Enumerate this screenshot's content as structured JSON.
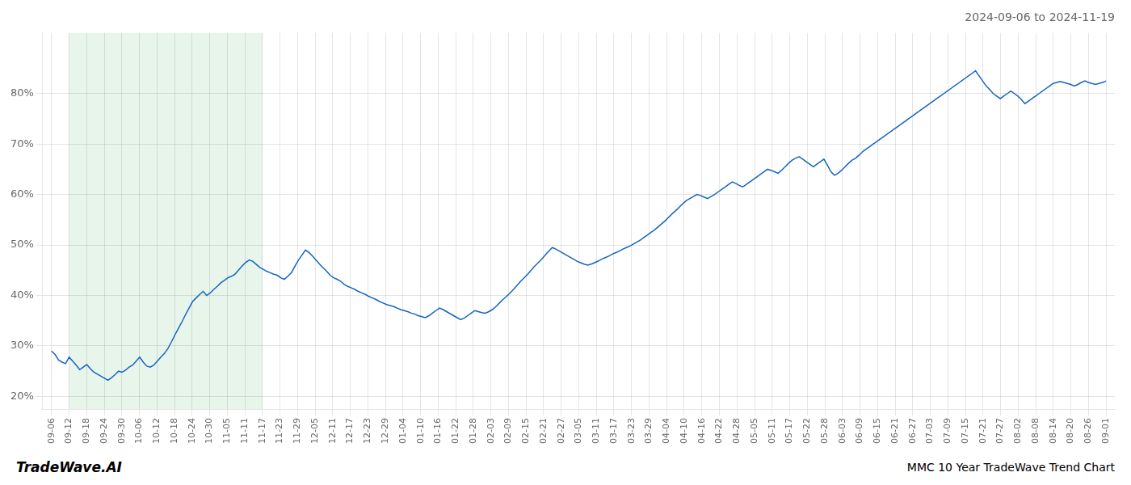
{
  "chart_data": {
    "type": "line",
    "title": "2024-09-06 to 2024-11-19",
    "annotations": [
      "TradeWave.AI",
      "MMC 10 Year TradeWave Trend Chart"
    ],
    "color": "#1565c0",
    "grid": true,
    "xlim": [
      -0.5,
      60.5
    ],
    "ylim": [
      0.175,
      0.92
    ],
    "yticks": [
      {
        "value": 0.2,
        "label": "20%"
      },
      {
        "value": 0.3,
        "label": "30%"
      },
      {
        "value": 0.4,
        "label": "40%"
      },
      {
        "value": 0.5,
        "label": "50%"
      },
      {
        "value": 0.6,
        "label": "60%"
      },
      {
        "value": 0.7,
        "label": "70%"
      },
      {
        "value": 0.8,
        "label": "80%"
      }
    ],
    "xticks": [
      {
        "value": 0,
        "label": "09-06"
      },
      {
        "value": 1,
        "label": "09-12"
      },
      {
        "value": 2,
        "label": "09-18"
      },
      {
        "value": 3,
        "label": "09-24"
      },
      {
        "value": 4,
        "label": "09-30"
      },
      {
        "value": 5,
        "label": "10-06"
      },
      {
        "value": 6,
        "label": "10-12"
      },
      {
        "value": 7,
        "label": "10-18"
      },
      {
        "value": 8,
        "label": "10-24"
      },
      {
        "value": 9,
        "label": "10-30"
      },
      {
        "value": 10,
        "label": "11-05"
      },
      {
        "value": 11,
        "label": "11-11"
      },
      {
        "value": 12,
        "label": "11-17"
      },
      {
        "value": 13,
        "label": "11-23"
      },
      {
        "value": 14,
        "label": "11-29"
      },
      {
        "value": 15,
        "label": "12-05"
      },
      {
        "value": 16,
        "label": "12-11"
      },
      {
        "value": 17,
        "label": "12-17"
      },
      {
        "value": 18,
        "label": "12-23"
      },
      {
        "value": 19,
        "label": "12-29"
      },
      {
        "value": 20,
        "label": "01-04"
      },
      {
        "value": 21,
        "label": "01-10"
      },
      {
        "value": 22,
        "label": "01-16"
      },
      {
        "value": 23,
        "label": "01-22"
      },
      {
        "value": 24,
        "label": "01-28"
      },
      {
        "value": 25,
        "label": "02-03"
      },
      {
        "value": 26,
        "label": "02-09"
      },
      {
        "value": 27,
        "label": "02-15"
      },
      {
        "value": 28,
        "label": "02-21"
      },
      {
        "value": 29,
        "label": "02-27"
      },
      {
        "value": 30,
        "label": "03-05"
      },
      {
        "value": 31,
        "label": "03-11"
      },
      {
        "value": 32,
        "label": "03-17"
      },
      {
        "value": 33,
        "label": "03-23"
      },
      {
        "value": 34,
        "label": "03-29"
      },
      {
        "value": 35,
        "label": "04-04"
      },
      {
        "value": 36,
        "label": "04-10"
      },
      {
        "value": 37,
        "label": "04-16"
      },
      {
        "value": 38,
        "label": "04-22"
      },
      {
        "value": 39,
        "label": "04-28"
      },
      {
        "value": 40,
        "label": "05-05"
      },
      {
        "value": 41,
        "label": "05-11"
      },
      {
        "value": 42,
        "label": "05-17"
      },
      {
        "value": 43,
        "label": "05-22"
      },
      {
        "value": 44,
        "label": "05-28"
      },
      {
        "value": 45,
        "label": "06-03"
      },
      {
        "value": 46,
        "label": "06-09"
      },
      {
        "value": 47,
        "label": "06-15"
      },
      {
        "value": 48,
        "label": "06-21"
      },
      {
        "value": 49,
        "label": "06-27"
      },
      {
        "value": 50,
        "label": "07-03"
      },
      {
        "value": 51,
        "label": "07-09"
      },
      {
        "value": 52,
        "label": "07-15"
      },
      {
        "value": 53,
        "label": "07-21"
      },
      {
        "value": 54,
        "label": "07-27"
      },
      {
        "value": 55,
        "label": "08-02"
      },
      {
        "value": 56,
        "label": "08-08"
      },
      {
        "value": 57,
        "label": "08-14"
      },
      {
        "value": 58,
        "label": "08-20"
      },
      {
        "value": 59,
        "label": "08-26"
      },
      {
        "value": 60,
        "label": "09-01"
      }
    ],
    "shade": {
      "from": 1,
      "to": 12,
      "color": "#d4edda"
    },
    "x": [
      0,
      0.201,
      0.401,
      0.602,
      0.803,
      1.003,
      1.204,
      1.405,
      1.605,
      1.806,
      2.007,
      2.207,
      2.408,
      2.609,
      2.809,
      3.01,
      3.211,
      3.411,
      3.612,
      3.813,
      4.013,
      4.214,
      4.415,
      4.615,
      4.816,
      5.017,
      5.217,
      5.418,
      5.619,
      5.819,
      6.02,
      6.221,
      6.421,
      6.622,
      6.823,
      7.023,
      7.224,
      7.425,
      7.625,
      7.826,
      8.027,
      8.227,
      8.428,
      8.629,
      8.829,
      9.03,
      9.231,
      9.431,
      9.632,
      9.833,
      10.033,
      10.234,
      10.435,
      10.635,
      10.836,
      11.037,
      11.237,
      11.438,
      11.639,
      11.839,
      12.04,
      12.241,
      12.441,
      12.642,
      12.843,
      13.043,
      13.244,
      13.445,
      13.645,
      13.846,
      14.047,
      14.247,
      14.448,
      14.649,
      14.849,
      15.05,
      15.251,
      15.452,
      15.652,
      15.853,
      16.054,
      16.254,
      16.455,
      16.656,
      16.856,
      17.057,
      17.258,
      17.458,
      17.659,
      17.86,
      18.06,
      18.261,
      18.462,
      18.662,
      18.863,
      19.064,
      19.264,
      19.465,
      19.666,
      19.866,
      20.067,
      20.268,
      20.468,
      20.669,
      20.87,
      21.07,
      21.271,
      21.472,
      21.672,
      21.873,
      22.074,
      22.274,
      22.475,
      22.676,
      22.876,
      23.077,
      23.278,
      23.478,
      23.679,
      23.88,
      24.08,
      24.281,
      24.482,
      24.682,
      24.883,
      25.084,
      25.284,
      25.485,
      25.686,
      25.886,
      26.087,
      26.288,
      26.488,
      26.689,
      26.89,
      27.09,
      27.291,
      27.492,
      27.692,
      27.893,
      28.094,
      28.294,
      28.495,
      28.696,
      28.896,
      29.097,
      29.298,
      29.498,
      29.699,
      29.9,
      30.1,
      30.301,
      30.502,
      30.702,
      30.903,
      31.104,
      31.304,
      31.505,
      31.706,
      31.906,
      32.107,
      32.308,
      32.508,
      32.709,
      32.91,
      33.11,
      33.311,
      33.512,
      33.712,
      33.913,
      34.114,
      34.314,
      34.515,
      34.716,
      34.916,
      35.117,
      35.318,
      35.518,
      35.719,
      35.92,
      36.12,
      36.321,
      36.522,
      36.722,
      36.923,
      37.124,
      37.324,
      37.525,
      37.726,
      37.926,
      38.127,
      38.328,
      38.528,
      38.729,
      38.93,
      39.13,
      39.331,
      39.532,
      39.732,
      39.933,
      40.134,
      40.334,
      40.535,
      40.736,
      40.936,
      41.137,
      41.338,
      41.538,
      41.739,
      41.94,
      42.14,
      42.341,
      42.542,
      42.742,
      42.943,
      43.144,
      43.344,
      43.545,
      43.746,
      43.946,
      44.147,
      44.348,
      44.548,
      44.749,
      44.95,
      45.151,
      45.351,
      45.552,
      45.753,
      45.953,
      46.154,
      46.355,
      46.555,
      46.756,
      46.957,
      47.157,
      47.358,
      47.559,
      47.759,
      47.96,
      48.161,
      48.361,
      48.562,
      48.763,
      48.963,
      49.164,
      49.365,
      49.565,
      49.766,
      49.967,
      50.167,
      50.368,
      50.569,
      50.769,
      50.97,
      51.171,
      51.371,
      51.572,
      51.773,
      51.973,
      52.174,
      52.375,
      52.575,
      52.776,
      52.977,
      53.177,
      53.378,
      53.579,
      53.779,
      53.98,
      54.181,
      54.381,
      54.582,
      54.783,
      54.983,
      55.184,
      55.385,
      55.585,
      55.786,
      55.987,
      56.187,
      56.388,
      56.589,
      56.789,
      56.99,
      57.191,
      57.391,
      57.592,
      57.793,
      57.993,
      58.194,
      58.395,
      58.595,
      58.796,
      58.997,
      59.197,
      59.398,
      59.599,
      59.799,
      60
    ],
    "values": [
      0.29,
      0.283,
      0.272,
      0.268,
      0.265,
      0.278,
      0.27,
      0.262,
      0.253,
      0.258,
      0.263,
      0.255,
      0.248,
      0.244,
      0.24,
      0.236,
      0.232,
      0.237,
      0.243,
      0.25,
      0.248,
      0.252,
      0.258,
      0.262,
      0.27,
      0.278,
      0.268,
      0.26,
      0.258,
      0.262,
      0.27,
      0.278,
      0.285,
      0.295,
      0.308,
      0.322,
      0.335,
      0.348,
      0.362,
      0.375,
      0.388,
      0.395,
      0.402,
      0.408,
      0.4,
      0.405,
      0.412,
      0.418,
      0.425,
      0.43,
      0.435,
      0.438,
      0.442,
      0.45,
      0.458,
      0.465,
      0.47,
      0.468,
      0.462,
      0.456,
      0.452,
      0.448,
      0.445,
      0.442,
      0.44,
      0.435,
      0.432,
      0.438,
      0.445,
      0.458,
      0.47,
      0.48,
      0.49,
      0.485,
      0.478,
      0.47,
      0.462,
      0.455,
      0.448,
      0.44,
      0.435,
      0.432,
      0.428,
      0.422,
      0.418,
      0.415,
      0.412,
      0.408,
      0.405,
      0.402,
      0.398,
      0.395,
      0.392,
      0.388,
      0.385,
      0.382,
      0.38,
      0.378,
      0.375,
      0.372,
      0.37,
      0.368,
      0.365,
      0.363,
      0.36,
      0.358,
      0.356,
      0.36,
      0.365,
      0.37,
      0.375,
      0.372,
      0.368,
      0.364,
      0.36,
      0.356,
      0.352,
      0.355,
      0.36,
      0.365,
      0.37,
      0.368,
      0.366,
      0.365,
      0.368,
      0.372,
      0.378,
      0.385,
      0.392,
      0.398,
      0.405,
      0.412,
      0.42,
      0.428,
      0.435,
      0.442,
      0.45,
      0.458,
      0.465,
      0.472,
      0.48,
      0.488,
      0.495,
      0.492,
      0.488,
      0.484,
      0.48,
      0.476,
      0.472,
      0.468,
      0.465,
      0.462,
      0.46,
      0.462,
      0.465,
      0.468,
      0.472,
      0.475,
      0.478,
      0.482,
      0.485,
      0.488,
      0.492,
      0.495,
      0.498,
      0.502,
      0.506,
      0.51,
      0.515,
      0.52,
      0.525,
      0.53,
      0.536,
      0.542,
      0.548,
      0.555,
      0.562,
      0.568,
      0.575,
      0.582,
      0.588,
      0.592,
      0.596,
      0.6,
      0.598,
      0.595,
      0.592,
      0.596,
      0.6,
      0.605,
      0.61,
      0.615,
      0.62,
      0.625,
      0.622,
      0.618,
      0.615,
      0.62,
      0.625,
      0.63,
      0.635,
      0.64,
      0.645,
      0.65,
      0.648,
      0.645,
      0.642,
      0.648,
      0.655,
      0.662,
      0.668,
      0.672,
      0.675,
      0.67,
      0.665,
      0.66,
      0.655,
      0.66,
      0.665,
      0.67,
      0.658,
      0.645,
      0.638,
      0.642,
      0.648,
      0.655,
      0.662,
      0.668,
      0.672,
      0.678,
      0.685,
      0.69,
      0.695,
      0.7,
      0.705,
      0.71,
      0.715,
      0.72,
      0.725,
      0.73,
      0.735,
      0.74,
      0.745,
      0.75,
      0.755,
      0.76,
      0.765,
      0.77,
      0.775,
      0.78,
      0.785,
      0.79,
      0.795,
      0.8,
      0.805,
      0.81,
      0.815,
      0.82,
      0.825,
      0.83,
      0.835,
      0.84,
      0.845,
      0.835,
      0.825,
      0.815,
      0.808,
      0.8,
      0.795,
      0.79,
      0.795,
      0.8,
      0.805,
      0.8,
      0.795,
      0.788,
      0.78,
      0.785,
      0.79,
      0.795,
      0.8,
      0.805,
      0.81,
      0.815,
      0.82,
      0.822,
      0.824,
      0.822,
      0.82,
      0.818,
      0.815,
      0.818,
      0.822,
      0.825,
      0.822,
      0.82,
      0.818,
      0.82,
      0.822,
      0.825
    ]
  }
}
